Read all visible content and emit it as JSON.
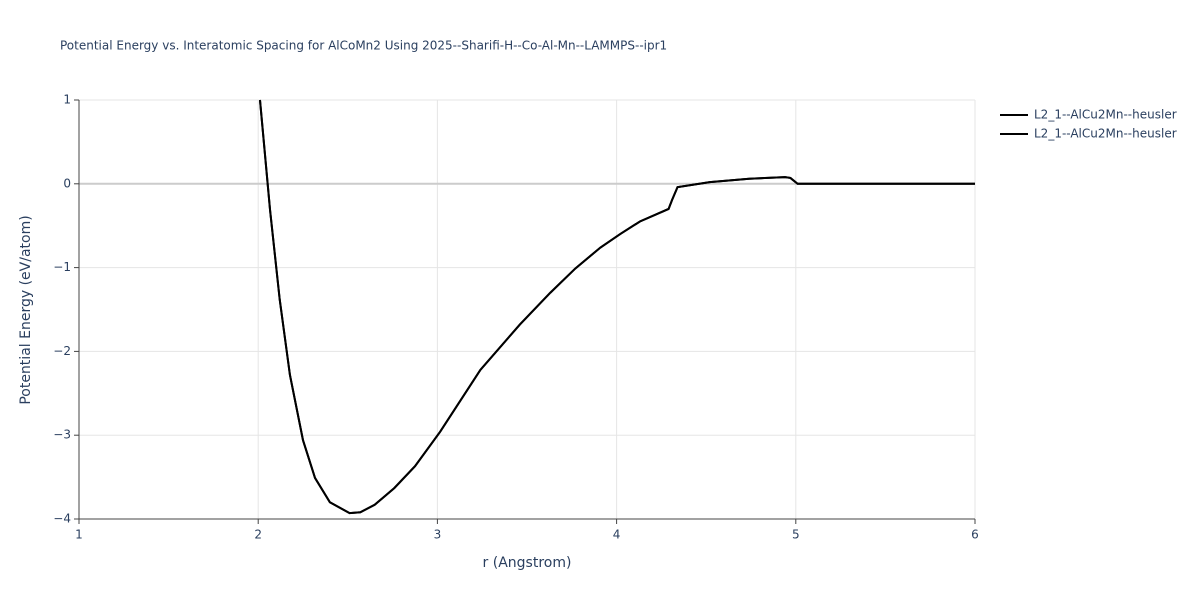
{
  "chart_data": {
    "type": "line",
    "title": "Potential Energy vs. Interatomic Spacing for AlCoMn2 Using 2025--Sharifi-H--Co-Al-Mn--LAMMPS--ipr1",
    "x_label": "r (Angstrom)",
    "y_label": "Potential Energy (eV/atom)",
    "x": [
      2.01,
      2.066,
      2.12,
      2.177,
      2.25,
      2.317,
      2.4,
      2.51,
      2.57,
      2.65,
      2.76,
      2.875,
      3.015,
      3.24,
      3.46,
      3.63,
      3.77,
      3.91,
      4.02,
      4.13,
      4.29,
      4.31,
      4.34,
      4.52,
      4.74,
      4.94,
      4.97,
      5.01,
      6
    ],
    "series": [
      {
        "name": "L2_1--AlCu2Mn--heusler",
        "color": "#000000",
        "values": [
          1,
          -0.31,
          -1.38,
          -2.28,
          -3.06,
          -3.51,
          -3.8,
          -3.93,
          -3.92,
          -3.83,
          -3.63,
          -3.37,
          -2.96,
          -2.22,
          -1.68,
          -1.3,
          -1.01,
          -0.76,
          -0.6,
          -0.45,
          -0.3,
          -0.19,
          -0.04,
          0.02,
          0.06,
          0.08,
          0.07,
          0,
          0
        ]
      },
      {
        "name": "L2_1--AlCu2Mn--heusler",
        "color": "#000000",
        "values": [
          1,
          -0.31,
          -1.38,
          -2.28,
          -3.06,
          -3.51,
          -3.8,
          -3.93,
          -3.92,
          -3.83,
          -3.63,
          -3.37,
          -2.96,
          -2.22,
          -1.68,
          -1.3,
          -1.01,
          -0.76,
          -0.6,
          -0.45,
          -0.3,
          -0.19,
          -0.04,
          0.02,
          0.06,
          0.08,
          0.07,
          0,
          0
        ]
      }
    ],
    "xlim": [
      1,
      6
    ],
    "xticks": [
      1,
      2,
      3,
      4,
      5,
      6
    ],
    "ylim": [
      -4,
      1
    ],
    "yticks": [
      {
        "value": -4,
        "label": "−4"
      },
      {
        "value": -3,
        "label": "−3"
      },
      {
        "value": -2,
        "label": "−2"
      },
      {
        "value": -1,
        "label": "−1"
      },
      0,
      1
    ],
    "grid": true
  }
}
